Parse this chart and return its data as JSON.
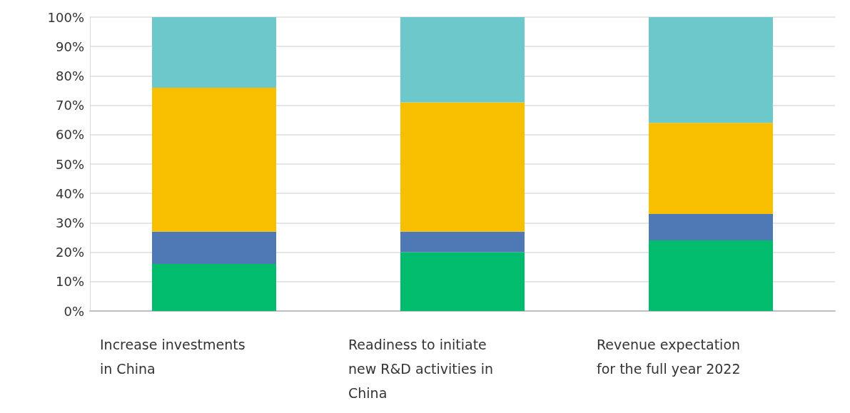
{
  "chart_data": {
    "type": "bar",
    "stacked": true,
    "categories": [
      "Increase investments in China",
      "Readiness to initiate new R&D activities in China",
      "Revenue expectation for the full year 2022"
    ],
    "series": [
      {
        "color": "#00bc6c",
        "values": [
          16,
          20,
          24
        ]
      },
      {
        "color": "#4e79b5",
        "values": [
          11,
          7,
          9
        ]
      },
      {
        "color": "#f8bf00",
        "values": [
          49,
          44,
          31
        ]
      },
      {
        "color": "#6dc8cc",
        "values": [
          24,
          29,
          36
        ]
      }
    ],
    "ylim": [
      0,
      100
    ],
    "yticks": [
      {
        "value": 0,
        "label": "0%"
      },
      {
        "value": 10,
        "label": "10%"
      },
      {
        "value": 20,
        "label": "20%"
      },
      {
        "value": 30,
        "label": "30%"
      },
      {
        "value": 40,
        "label": "40%"
      },
      {
        "value": 50,
        "label": "50%"
      },
      {
        "value": 60,
        "label": "60%"
      },
      {
        "value": 70,
        "label": "70%"
      },
      {
        "value": 80,
        "label": "80%"
      },
      {
        "value": 90,
        "label": "90%"
      },
      {
        "value": 100,
        "label": "100%"
      }
    ],
    "grid": "y"
  }
}
